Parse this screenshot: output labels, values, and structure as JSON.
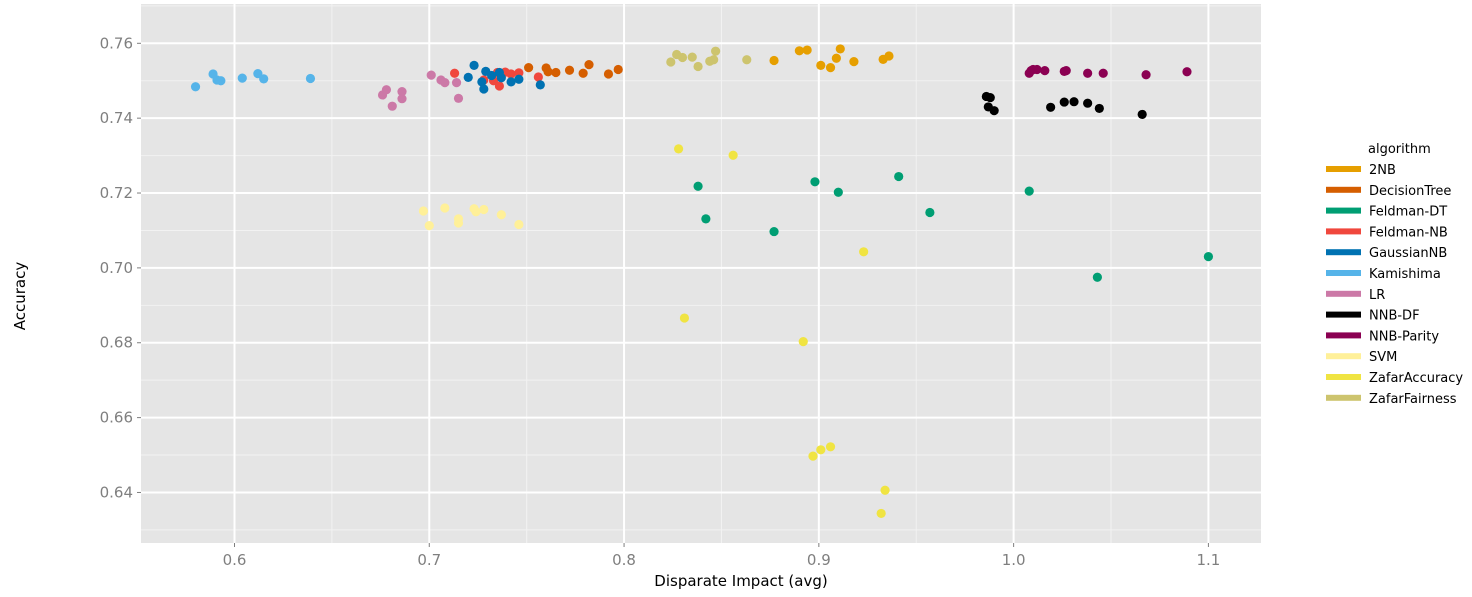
{
  "chart_data": {
    "type": "scatter",
    "title": "",
    "xlabel": "Disparate Impact (avg)",
    "ylabel": "Accuracy",
    "xlim": [
      0.552,
      1.127
    ],
    "ylim": [
      0.6265,
      0.7705
    ],
    "xticks": [
      0.6,
      0.7,
      0.8,
      0.9,
      1.0,
      1.1
    ],
    "xtick_labels": [
      "0.6",
      "0.7",
      "0.8",
      "0.9",
      "1.0",
      "1.1"
    ],
    "yticks": [
      0.64,
      0.66,
      0.68,
      0.7,
      0.72,
      0.74,
      0.76
    ],
    "ytick_labels": [
      "0.64",
      "0.66",
      "0.68",
      "0.70",
      "0.72",
      "0.74",
      "0.76"
    ],
    "grid": true,
    "legend_title": "algorithm",
    "legend_position": "right",
    "series": [
      {
        "name": "2NB",
        "color": "#E69F00",
        "points": [
          [
            0.877,
            0.7554
          ],
          [
            0.89,
            0.758
          ],
          [
            0.894,
            0.7582
          ],
          [
            0.901,
            0.7541
          ],
          [
            0.906,
            0.7535
          ],
          [
            0.909,
            0.756
          ],
          [
            0.911,
            0.7585
          ],
          [
            0.918,
            0.7551
          ],
          [
            0.933,
            0.7557
          ],
          [
            0.936,
            0.7566
          ]
        ]
      },
      {
        "name": "DecisionTree",
        "color": "#D55E00",
        "points": [
          [
            0.751,
            0.7535
          ],
          [
            0.76,
            0.7534
          ],
          [
            0.761,
            0.7524
          ],
          [
            0.765,
            0.7522
          ],
          [
            0.772,
            0.7528
          ],
          [
            0.779,
            0.752
          ],
          [
            0.782,
            0.7543
          ],
          [
            0.792,
            0.7518
          ],
          [
            0.797,
            0.753
          ]
        ]
      },
      {
        "name": "Feldman-DT",
        "color": "#009E73",
        "points": [
          [
            0.838,
            0.7218
          ],
          [
            0.842,
            0.7131
          ],
          [
            0.877,
            0.7097
          ],
          [
            0.898,
            0.723
          ],
          [
            0.91,
            0.7202
          ],
          [
            0.941,
            0.7244
          ],
          [
            0.957,
            0.7148
          ],
          [
            1.008,
            0.7205
          ],
          [
            1.043,
            0.6975
          ],
          [
            1.1,
            0.703
          ]
        ]
      },
      {
        "name": "Feldman-NB",
        "color": "#F0473D",
        "points": [
          [
            0.713,
            0.752
          ],
          [
            0.728,
            0.7502
          ],
          [
            0.733,
            0.75
          ],
          [
            0.735,
            0.7522
          ],
          [
            0.736,
            0.7486
          ],
          [
            0.739,
            0.7523
          ],
          [
            0.742,
            0.7518
          ],
          [
            0.746,
            0.7521
          ],
          [
            0.756,
            0.751
          ]
        ]
      },
      {
        "name": "GaussianNB",
        "color": "#0072B2",
        "points": [
          [
            0.72,
            0.7509
          ],
          [
            0.723,
            0.7541
          ],
          [
            0.727,
            0.7497
          ],
          [
            0.728,
            0.7478
          ],
          [
            0.729,
            0.7525
          ],
          [
            0.732,
            0.7514
          ],
          [
            0.736,
            0.7522
          ],
          [
            0.737,
            0.7508
          ],
          [
            0.742,
            0.7497
          ],
          [
            0.746,
            0.7504
          ],
          [
            0.757,
            0.7489
          ]
        ]
      },
      {
        "name": "Kamishima",
        "color": "#56B4E9",
        "points": [
          [
            0.58,
            0.7484
          ],
          [
            0.589,
            0.7518
          ],
          [
            0.591,
            0.7502
          ],
          [
            0.593,
            0.75
          ],
          [
            0.604,
            0.7507
          ],
          [
            0.612,
            0.7519
          ],
          [
            0.615,
            0.7505
          ],
          [
            0.639,
            0.7506
          ]
        ]
      },
      {
        "name": "LR",
        "color": "#CC79A7",
        "points": [
          [
            0.676,
            0.7462
          ],
          [
            0.678,
            0.7476
          ],
          [
            0.681,
            0.7432
          ],
          [
            0.686,
            0.7471
          ],
          [
            0.686,
            0.7452
          ],
          [
            0.701,
            0.7515
          ],
          [
            0.706,
            0.7502
          ],
          [
            0.708,
            0.7495
          ],
          [
            0.714,
            0.7495
          ],
          [
            0.715,
            0.7453
          ]
        ]
      },
      {
        "name": "NNB-DF",
        "color": "#000000",
        "points": [
          [
            0.986,
            0.7458
          ],
          [
            0.988,
            0.7455
          ],
          [
            0.987,
            0.743
          ],
          [
            0.99,
            0.742
          ],
          [
            1.019,
            0.7429
          ],
          [
            1.026,
            0.7443
          ],
          [
            1.031,
            0.7444
          ],
          [
            1.038,
            0.744
          ],
          [
            1.044,
            0.7426
          ],
          [
            1.066,
            0.741
          ]
        ]
      },
      {
        "name": "NNB-Parity",
        "color": "#8B0052",
        "points": [
          [
            1.008,
            0.752
          ],
          [
            1.009,
            0.7527
          ],
          [
            1.01,
            0.753
          ],
          [
            1.012,
            0.753
          ],
          [
            1.016,
            0.7527
          ],
          [
            1.026,
            0.7525
          ],
          [
            1.027,
            0.7527
          ],
          [
            1.038,
            0.752
          ],
          [
            1.046,
            0.752
          ],
          [
            1.068,
            0.7516
          ],
          [
            1.089,
            0.7524
          ]
        ]
      },
      {
        "name": "SVM",
        "color": "#FFF099",
        "points": [
          [
            0.697,
            0.7152
          ],
          [
            0.7,
            0.7113
          ],
          [
            0.708,
            0.716
          ],
          [
            0.715,
            0.7131
          ],
          [
            0.715,
            0.712
          ],
          [
            0.723,
            0.7158
          ],
          [
            0.724,
            0.715
          ],
          [
            0.728,
            0.7156
          ],
          [
            0.737,
            0.7142
          ],
          [
            0.746,
            0.7116
          ]
        ]
      },
      {
        "name": "ZafarAccuracy",
        "color": "#F0E442",
        "points": [
          [
            0.828,
            0.7318
          ],
          [
            0.831,
            0.6866
          ],
          [
            0.856,
            0.7301
          ],
          [
            0.892,
            0.6803
          ],
          [
            0.897,
            0.6497
          ],
          [
            0.901,
            0.6514
          ],
          [
            0.906,
            0.6522
          ],
          [
            0.923,
            0.7043
          ],
          [
            0.932,
            0.6344
          ],
          [
            0.934,
            0.6406
          ]
        ]
      },
      {
        "name": "ZafarFairness",
        "color": "#CDC46E",
        "points": [
          [
            0.824,
            0.755
          ],
          [
            0.827,
            0.757
          ],
          [
            0.83,
            0.7562
          ],
          [
            0.835,
            0.7563
          ],
          [
            0.838,
            0.7538
          ],
          [
            0.844,
            0.7552
          ],
          [
            0.846,
            0.7556
          ],
          [
            0.847,
            0.7579
          ],
          [
            0.863,
            0.7556
          ]
        ]
      }
    ]
  }
}
